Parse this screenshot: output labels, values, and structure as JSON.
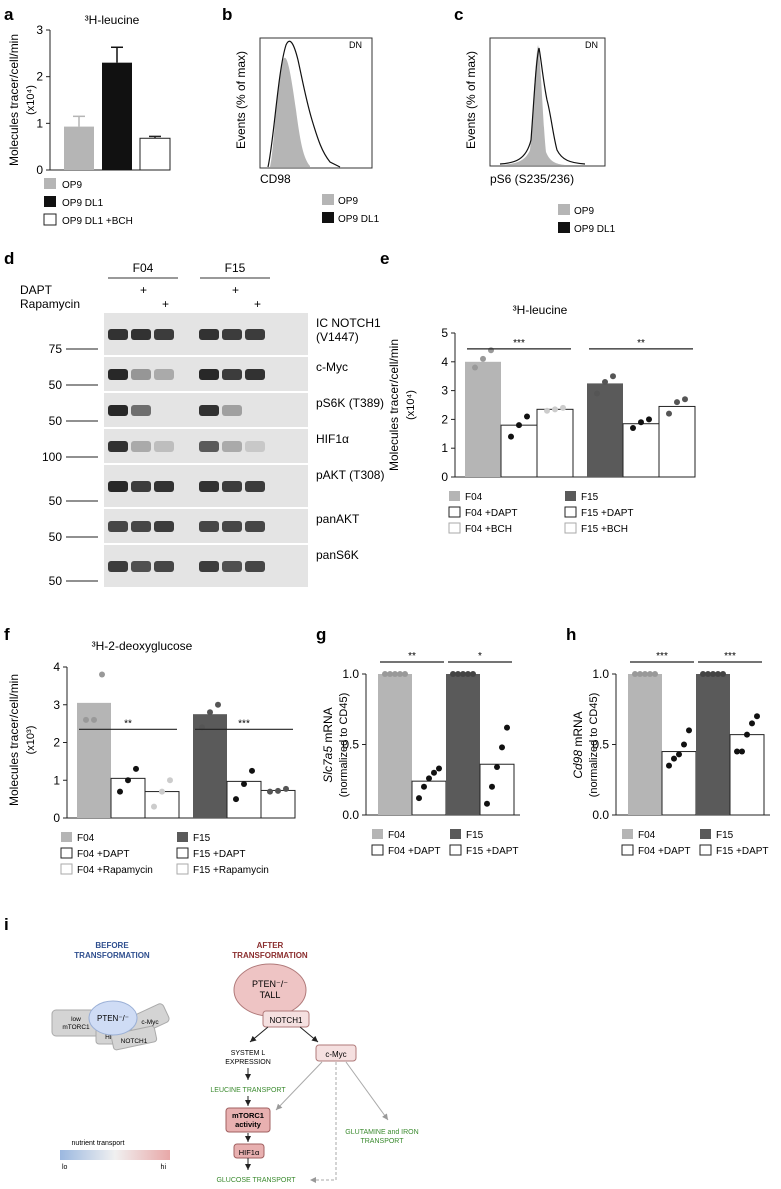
{
  "panels": {
    "a": {
      "letter": "a",
      "title": "³H-leucine",
      "ylabel": "Molecules tracer/cell/min",
      "ylabel2": "(x10⁴)",
      "legend": [
        "OP9",
        "OP9 DL1",
        "OP9 DL1 +BCH"
      ]
    },
    "b": {
      "letter": "b",
      "xlabel": "CD98",
      "ylabel": "Events (% of max)",
      "gate": "DN",
      "legend": [
        "OP9",
        "OP9 DL1"
      ]
    },
    "c": {
      "letter": "c",
      "xlabel": "pS6 (S235/236)",
      "ylabel": "Events (% of max)",
      "gate": "DN",
      "legend": [
        "OP9",
        "OP9 DL1"
      ]
    },
    "d": {
      "letter": "d",
      "cell_lines": [
        "F04",
        "F15"
      ],
      "treatments": [
        "DAPT",
        "Rapamycin"
      ],
      "plus": "+",
      "bands": [
        {
          "label": "IC NOTCH1\n(V1447)",
          "marker": "75"
        },
        {
          "label": "c-Myc",
          "marker": "50"
        },
        {
          "label": "pS6K (T389)",
          "marker": "50"
        },
        {
          "label": "HIF1α",
          "marker": "100"
        },
        {
          "label": "pAKT (T308)",
          "marker": "50"
        },
        {
          "label": "panAKT",
          "marker": "50"
        },
        {
          "label": "panS6K",
          "marker": "50"
        }
      ]
    },
    "e": {
      "letter": "e",
      "title": "³H-leucine",
      "ylabel": "Molecules tracer/cell/min",
      "ylabel2": "(x10⁴)",
      "sig": [
        "***",
        "**"
      ],
      "legend": [
        "F04",
        "F15",
        "F04 +DAPT",
        "F15 +DAPT",
        "F04 +BCH",
        "F15 +BCH"
      ]
    },
    "f": {
      "letter": "f",
      "title": "³H-2-deoxyglucose",
      "ylabel": "Molecules tracer/cell/min",
      "ylabel2": "(x10³)",
      "sig": [
        "**",
        "***"
      ],
      "legend": [
        "F04",
        "F15",
        "F04 +DAPT",
        "F15 +DAPT",
        "F04 +Rapamycin",
        "F15 +Rapamycin"
      ]
    },
    "g": {
      "letter": "g",
      "ylabel_italic": "Slc7a5",
      "ylabel_rest": " mRNA",
      "ylabel2": "(normalized to CD45)",
      "sig": [
        "**",
        "*"
      ],
      "legend": [
        "F04",
        "F15",
        "F04 +DAPT",
        "F15 +DAPT"
      ]
    },
    "h": {
      "letter": "h",
      "ylabel_italic": "Cd98",
      "ylabel_rest": " mRNA",
      "ylabel2": "(normalized to CD45)",
      "sig": [
        "***",
        "***"
      ],
      "legend": [
        "F04",
        "F15",
        "F04 +DAPT",
        "F15 +DAPT"
      ]
    },
    "i": {
      "letter": "i",
      "before_title": "BEFORE\nTRANSFORMATION",
      "after_title": "AFTER\nTRANSFORMATION",
      "pten_before": "PTEN⁻/⁻",
      "low_label": "low\nmTORC1",
      "cmyc_small": "c-Myc",
      "hif_small": "HIF1α",
      "notch_small": "NOTCH1",
      "pten_after": "PTEN⁻/⁻\nTALL",
      "notch1": "NOTCH1",
      "system_l": "SYSTEM L\nEXPRESSION",
      "cmyc": "c-Myc",
      "leucine": "LEUCINE TRANSPORT",
      "mtorc1": "mTORC1\nactivity",
      "hif": "HIF1α",
      "glucose": "GLUCOSE TRANSPORT",
      "glutamine": "GLUTAMINE and IRON\nTRANSPORT",
      "scale_title": "nutrient transport",
      "scale_lo": "lo",
      "scale_hi": "hi",
      "colors": {
        "before": "#2f4f8f",
        "after": "#8b2e2e",
        "green": "#3a8a2e"
      }
    }
  },
  "chart_data": [
    {
      "id": "a",
      "type": "bar",
      "categories": [
        "OP9",
        "OP9 DL1",
        "OP9 DL1 +BCH"
      ],
      "values": [
        0.93,
        2.3,
        0.68
      ],
      "errors": [
        0.22,
        0.33,
        0.04
      ],
      "ylim": [
        0,
        3
      ],
      "yticks": [
        0,
        1,
        2,
        3
      ],
      "colors": [
        "#b5b5b5",
        "#111111",
        "#ffffff"
      ]
    },
    {
      "id": "e",
      "type": "bar",
      "categories": [
        "F04",
        "F04 +DAPT",
        "F04 +BCH",
        "F15",
        "F15 +DAPT",
        "F15 +BCH"
      ],
      "values": [
        4.0,
        1.8,
        2.35,
        3.25,
        1.85,
        2.45
      ],
      "ylim": [
        0,
        5
      ],
      "yticks": [
        0,
        1,
        2,
        3,
        4,
        5
      ],
      "colors": [
        "#b5b5b5",
        "#ffffff",
        "#ffffff",
        "#5a5a5a",
        "#ffffff",
        "#ffffff"
      ],
      "points": [
        [
          3.8,
          4.1,
          4.4
        ],
        [
          1.4,
          1.8,
          2.1
        ],
        [
          2.3,
          2.35,
          2.4
        ],
        [
          2.9,
          3.3,
          3.5
        ],
        [
          1.7,
          1.9,
          2.0
        ],
        [
          2.2,
          2.6,
          2.7
        ]
      ],
      "pointColors": [
        "#999999",
        "#111111",
        "#cccccc",
        "#555555",
        "#111111",
        "#555555"
      ]
    },
    {
      "id": "f",
      "type": "bar",
      "categories": [
        "F04",
        "F04 +DAPT",
        "F04 +Rapamycin",
        "F15",
        "F15 +DAPT",
        "F15 +Rapamycin"
      ],
      "values": [
        3.05,
        1.05,
        0.7,
        2.75,
        0.97,
        0.73
      ],
      "ylim": [
        0,
        4
      ],
      "yticks": [
        0,
        1,
        2,
        3,
        4
      ],
      "colors": [
        "#b5b5b5",
        "#ffffff",
        "#ffffff",
        "#5a5a5a",
        "#ffffff",
        "#ffffff"
      ],
      "points": [
        [
          2.6,
          2.6,
          3.8
        ],
        [
          0.7,
          1.0,
          1.3
        ],
        [
          0.3,
          0.7,
          1.0
        ],
        [
          2.4,
          2.8,
          3.0
        ],
        [
          0.5,
          0.9,
          1.25
        ],
        [
          0.7,
          0.72,
          0.77
        ]
      ],
      "pointColors": [
        "#999999",
        "#111111",
        "#cccccc",
        "#555555",
        "#111111",
        "#555555"
      ]
    },
    {
      "id": "g",
      "type": "bar",
      "categories": [
        "F04",
        "F04 +DAPT",
        "F15",
        "F15 +DAPT"
      ],
      "values": [
        1.0,
        0.24,
        1.0,
        0.36
      ],
      "ylim": [
        0,
        1.0
      ],
      "yticks": [
        0.0,
        0.5,
        1.0
      ],
      "colors": [
        "#b5b5b5",
        "#ffffff",
        "#5a5a5a",
        "#ffffff"
      ],
      "points": [
        [
          1,
          1,
          1,
          1,
          1
        ],
        [
          0.12,
          0.2,
          0.26,
          0.3,
          0.33
        ],
        [
          1,
          1,
          1,
          1,
          1
        ],
        [
          0.08,
          0.2,
          0.34,
          0.48,
          0.62
        ]
      ],
      "pointColors": [
        "#999999",
        "#111111",
        "#444444",
        "#111111"
      ]
    },
    {
      "id": "h",
      "type": "bar",
      "categories": [
        "F04",
        "F04 +DAPT",
        "F15",
        "F15 +DAPT"
      ],
      "values": [
        1.0,
        0.45,
        1.0,
        0.57
      ],
      "ylim": [
        0,
        1.0
      ],
      "yticks": [
        0.0,
        0.5,
        1.0
      ],
      "colors": [
        "#b5b5b5",
        "#ffffff",
        "#5a5a5a",
        "#ffffff"
      ],
      "points": [
        [
          1,
          1,
          1,
          1,
          1
        ],
        [
          0.35,
          0.4,
          0.43,
          0.5,
          0.6
        ],
        [
          1,
          1,
          1,
          1,
          1
        ],
        [
          0.45,
          0.45,
          0.57,
          0.65,
          0.7
        ]
      ],
      "pointColors": [
        "#999999",
        "#111111",
        "#444444",
        "#111111"
      ]
    }
  ]
}
